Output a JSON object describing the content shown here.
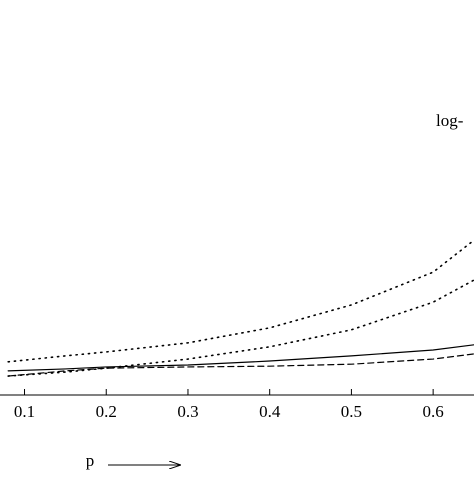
{
  "chart_data": {
    "type": "line",
    "x_label": "p",
    "annotation": "log-",
    "x": [
      0.08,
      0.15,
      0.2,
      0.3,
      0.4,
      0.5,
      0.6,
      0.65
    ],
    "series": [
      {
        "style": "solid",
        "color": "#000000",
        "values": [
          0.061,
          0.066,
          0.071,
          0.076,
          0.086,
          0.099,
          0.114,
          0.127
        ]
      },
      {
        "style": "dashed",
        "color": "#000000",
        "values": [
          0.048,
          0.061,
          0.068,
          0.071,
          0.073,
          0.078,
          0.091,
          0.104
        ]
      },
      {
        "style": "dotted",
        "color": "#000000",
        "values": [
          0.084,
          0.099,
          0.109,
          0.132,
          0.17,
          0.228,
          0.311,
          0.392
        ]
      },
      {
        "style": "dotted",
        "color": "#000000",
        "values": [
          0.048,
          0.058,
          0.068,
          0.091,
          0.122,
          0.165,
          0.235,
          0.291
        ]
      }
    ],
    "xlim": [
      0.07,
      0.65
    ],
    "xticks": [
      0.1,
      0.2,
      0.3,
      0.4,
      0.5,
      0.6
    ],
    "ylim": [
      0,
      1
    ]
  }
}
